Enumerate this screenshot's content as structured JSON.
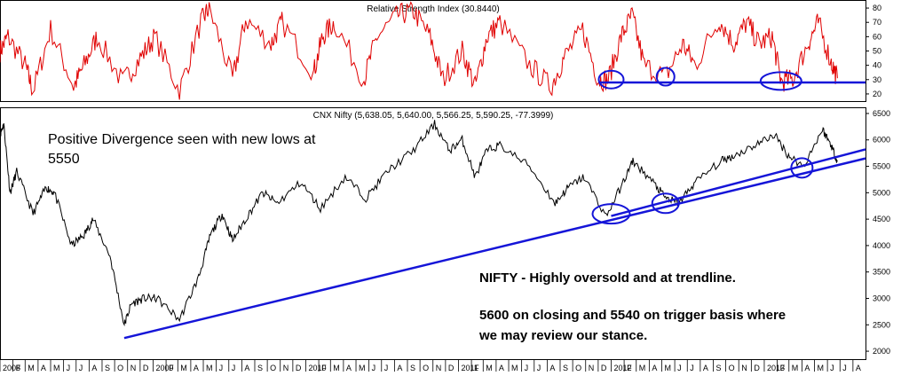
{
  "chart_data": [
    {
      "type": "line",
      "panel": "rsi",
      "title": "Relative Strength Index (30.8440)",
      "series": [
        {
          "name": "Relative Strength Index",
          "color": "#e00000"
        }
      ],
      "ylim": [
        15,
        85
      ],
      "yticks": [
        20,
        30,
        40,
        50,
        60,
        70,
        80
      ],
      "x_range": [
        "2008-01-01",
        "2013-08-31"
      ],
      "grid": false,
      "support_line": {
        "level": 28,
        "color": "#1515d8"
      },
      "highlight_circles": [
        {
          "date": "2012-01-01",
          "value": 30
        },
        {
          "date": "2012-05-10",
          "value": 32
        },
        {
          "date": "2013-02-10",
          "value": 29
        }
      ],
      "keypoints": [
        [
          "2008-01-01",
          50
        ],
        [
          "2008-01-20",
          60
        ],
        [
          "2008-03-01",
          40
        ],
        [
          "2008-03-20",
          22
        ],
        [
          "2008-05-01",
          65
        ],
        [
          "2008-06-25",
          25
        ],
        [
          "2008-07-20",
          40
        ],
        [
          "2008-08-20",
          60
        ],
        [
          "2008-10-20",
          28
        ],
        [
          "2008-12-01",
          45
        ],
        [
          "2009-01-05",
          60
        ],
        [
          "2009-03-05",
          22
        ],
        [
          "2009-04-25",
          70
        ],
        [
          "2009-05-15",
          80
        ],
        [
          "2009-07-10",
          30
        ],
        [
          "2009-08-10",
          72
        ],
        [
          "2009-10-10",
          55
        ],
        [
          "2009-11-05",
          70
        ],
        [
          "2010-01-20",
          35
        ],
        [
          "2010-02-10",
          60
        ],
        [
          "2010-03-10",
          70
        ],
        [
          "2010-05-20",
          30
        ],
        [
          "2010-06-20",
          60
        ],
        [
          "2010-08-10",
          75
        ],
        [
          "2010-09-15",
          78
        ],
        [
          "2010-10-25",
          60
        ],
        [
          "2010-11-25",
          30
        ],
        [
          "2011-01-10",
          50
        ],
        [
          "2011-02-10",
          25
        ],
        [
          "2011-03-10",
          60
        ],
        [
          "2011-04-10",
          70
        ],
        [
          "2011-06-20",
          40
        ],
        [
          "2011-08-10",
          25
        ],
        [
          "2011-09-10",
          45
        ],
        [
          "2011-10-25",
          65
        ],
        [
          "2011-12-01",
          30
        ],
        [
          "2011-12-25",
          30
        ],
        [
          "2012-01-25",
          60
        ],
        [
          "2012-02-20",
          75
        ],
        [
          "2012-03-20",
          40
        ],
        [
          "2012-05-10",
          32
        ],
        [
          "2012-06-20",
          55
        ],
        [
          "2012-07-20",
          40
        ],
        [
          "2012-09-15",
          72
        ],
        [
          "2012-10-20",
          55
        ],
        [
          "2012-11-20",
          70
        ],
        [
          "2012-12-20",
          55
        ],
        [
          "2013-01-20",
          60
        ],
        [
          "2013-02-10",
          29
        ],
        [
          "2013-03-10",
          30
        ],
        [
          "2013-04-15",
          55
        ],
        [
          "2013-05-10",
          70
        ],
        [
          "2013-06-10",
          42
        ],
        [
          "2013-06-25",
          31
        ]
      ]
    },
    {
      "type": "line",
      "panel": "price",
      "title": "CNX Nifty (5,638.05, 5,640.00, 5,566.25, 5,590.25, -77.3999)",
      "series": [
        {
          "name": "CNX Nifty",
          "color": "#000000"
        }
      ],
      "ylim": [
        1850,
        6600
      ],
      "yticks": [
        2000,
        2500,
        3000,
        3500,
        4000,
        4500,
        5000,
        5500,
        6000,
        6500
      ],
      "x_range": [
        "2008-01-01",
        "2013-08-31"
      ],
      "grid": false,
      "keypoints": [
        [
          "2008-01-01",
          6100
        ],
        [
          "2008-01-10",
          6300
        ],
        [
          "2008-01-25",
          5000
        ],
        [
          "2008-02-10",
          5400
        ],
        [
          "2008-03-20",
          4600
        ],
        [
          "2008-04-20",
          5100
        ],
        [
          "2008-05-10",
          5000
        ],
        [
          "2008-06-20",
          4000
        ],
        [
          "2008-07-20",
          4200
        ],
        [
          "2008-08-10",
          4500
        ],
        [
          "2008-09-20",
          3800
        ],
        [
          "2008-10-24",
          2500
        ],
        [
          "2008-11-10",
          2900
        ],
        [
          "2008-12-10",
          3000
        ],
        [
          "2009-01-10",
          3000
        ],
        [
          "2009-03-05",
          2600
        ],
        [
          "2009-04-20",
          3400
        ],
        [
          "2009-05-18",
          4200
        ],
        [
          "2009-06-15",
          4600
        ],
        [
          "2009-07-10",
          4100
        ],
        [
          "2009-08-10",
          4500
        ],
        [
          "2009-09-20",
          5000
        ],
        [
          "2009-10-25",
          4800
        ],
        [
          "2009-12-20",
          5200
        ],
        [
          "2010-02-05",
          4700
        ],
        [
          "2010-04-05",
          5300
        ],
        [
          "2010-05-25",
          4900
        ],
        [
          "2010-07-15",
          5400
        ],
        [
          "2010-09-15",
          5800
        ],
        [
          "2010-11-05",
          6300
        ],
        [
          "2010-12-10",
          5800
        ],
        [
          "2011-01-10",
          6000
        ],
        [
          "2011-02-10",
          5300
        ],
        [
          "2011-03-10",
          5800
        ],
        [
          "2011-04-10",
          5900
        ],
        [
          "2011-06-20",
          5500
        ],
        [
          "2011-08-20",
          4800
        ],
        [
          "2011-09-20",
          5100
        ],
        [
          "2011-10-28",
          5300
        ],
        [
          "2011-12-20",
          4550
        ],
        [
          "2012-01-30",
          5200
        ],
        [
          "2012-02-22",
          5600
        ],
        [
          "2012-04-10",
          5200
        ],
        [
          "2012-05-10",
          4900
        ],
        [
          "2012-06-10",
          4800
        ],
        [
          "2012-07-20",
          5200
        ],
        [
          "2012-09-20",
          5600
        ],
        [
          "2012-10-20",
          5700
        ],
        [
          "2012-12-10",
          5900
        ],
        [
          "2013-01-25",
          6100
        ],
        [
          "2013-02-28",
          5700
        ],
        [
          "2013-04-05",
          5500
        ],
        [
          "2013-05-20",
          6200
        ],
        [
          "2013-06-10",
          5900
        ],
        [
          "2013-06-25",
          5590
        ]
      ],
      "trendlines": [
        {
          "from": [
            "2008-10-24",
            2250
          ],
          "to": [
            "2013-08-31",
            5650
          ],
          "color": "#1515d8"
        },
        {
          "from": [
            "2012-01-01",
            4560
          ],
          "to": [
            "2013-08-31",
            5820
          ],
          "color": "#1515d8"
        }
      ],
      "highlight_circles": [
        {
          "date": "2012-01-01",
          "value": 4600
        },
        {
          "date": "2012-05-10",
          "value": 4800
        },
        {
          "date": "2013-04-01",
          "value": 5470
        }
      ],
      "annotations": [
        {
          "line1": "Positive Divergence seen with new lows at",
          "line2": "5550"
        },
        {
          "heading": "NIFTY - Highly oversold and at trendline.",
          "line1": "5600 on closing and 5540 on trigger basis where",
          "line2": "we may review our stance."
        }
      ]
    }
  ],
  "x_axis": {
    "labels": [
      {
        "date": "2008-01-01",
        "text": "2008"
      },
      {
        "date": "2008-02-01",
        "text": "F"
      },
      {
        "date": "2008-03-01",
        "text": "M"
      },
      {
        "date": "2008-04-01",
        "text": "A"
      },
      {
        "date": "2008-05-01",
        "text": "M"
      },
      {
        "date": "2008-06-01",
        "text": "J"
      },
      {
        "date": "2008-07-01",
        "text": "J"
      },
      {
        "date": "2008-08-01",
        "text": "A"
      },
      {
        "date": "2008-09-01",
        "text": "S"
      },
      {
        "date": "2008-10-01",
        "text": "O"
      },
      {
        "date": "2008-11-01",
        "text": "N"
      },
      {
        "date": "2008-12-01",
        "text": "D"
      },
      {
        "date": "2009-01-01",
        "text": "2009"
      },
      {
        "date": "2009-02-01",
        "text": "F"
      },
      {
        "date": "2009-03-01",
        "text": "M"
      },
      {
        "date": "2009-04-01",
        "text": "A"
      },
      {
        "date": "2009-05-01",
        "text": "M"
      },
      {
        "date": "2009-06-01",
        "text": "J"
      },
      {
        "date": "2009-07-01",
        "text": "J"
      },
      {
        "date": "2009-08-01",
        "text": "A"
      },
      {
        "date": "2009-09-01",
        "text": "S"
      },
      {
        "date": "2009-10-01",
        "text": "O"
      },
      {
        "date": "2009-11-01",
        "text": "N"
      },
      {
        "date": "2009-12-01",
        "text": "D"
      },
      {
        "date": "2010-01-01",
        "text": "2010"
      },
      {
        "date": "2010-02-01",
        "text": "F"
      },
      {
        "date": "2010-03-01",
        "text": "M"
      },
      {
        "date": "2010-04-01",
        "text": "A"
      },
      {
        "date": "2010-05-01",
        "text": "M"
      },
      {
        "date": "2010-06-01",
        "text": "J"
      },
      {
        "date": "2010-07-01",
        "text": "J"
      },
      {
        "date": "2010-08-01",
        "text": "A"
      },
      {
        "date": "2010-09-01",
        "text": "S"
      },
      {
        "date": "2010-10-01",
        "text": "O"
      },
      {
        "date": "2010-11-01",
        "text": "N"
      },
      {
        "date": "2010-12-01",
        "text": "D"
      },
      {
        "date": "2011-01-01",
        "text": "2011"
      },
      {
        "date": "2011-02-01",
        "text": "F"
      },
      {
        "date": "2011-03-01",
        "text": "M"
      },
      {
        "date": "2011-04-01",
        "text": "A"
      },
      {
        "date": "2011-05-01",
        "text": "M"
      },
      {
        "date": "2011-06-01",
        "text": "J"
      },
      {
        "date": "2011-07-01",
        "text": "J"
      },
      {
        "date": "2011-08-01",
        "text": "A"
      },
      {
        "date": "2011-09-01",
        "text": "S"
      },
      {
        "date": "2011-10-01",
        "text": "O"
      },
      {
        "date": "2011-11-01",
        "text": "N"
      },
      {
        "date": "2011-12-01",
        "text": "D"
      },
      {
        "date": "2012-01-01",
        "text": "2012"
      },
      {
        "date": "2012-02-01",
        "text": "F"
      },
      {
        "date": "2012-03-01",
        "text": "M"
      },
      {
        "date": "2012-04-01",
        "text": "A"
      },
      {
        "date": "2012-05-01",
        "text": "M"
      },
      {
        "date": "2012-06-01",
        "text": "J"
      },
      {
        "date": "2012-07-01",
        "text": "J"
      },
      {
        "date": "2012-08-01",
        "text": "A"
      },
      {
        "date": "2012-09-01",
        "text": "S"
      },
      {
        "date": "2012-10-01",
        "text": "O"
      },
      {
        "date": "2012-11-01",
        "text": "N"
      },
      {
        "date": "2012-12-01",
        "text": "D"
      },
      {
        "date": "2013-01-01",
        "text": "2013"
      },
      {
        "date": "2013-02-01",
        "text": "F"
      },
      {
        "date": "2013-03-01",
        "text": "M"
      },
      {
        "date": "2013-04-01",
        "text": "A"
      },
      {
        "date": "2013-05-01",
        "text": "M"
      },
      {
        "date": "2013-06-01",
        "text": "J"
      },
      {
        "date": "2013-07-01",
        "text": "J"
      },
      {
        "date": "2013-08-01",
        "text": "A"
      }
    ]
  }
}
